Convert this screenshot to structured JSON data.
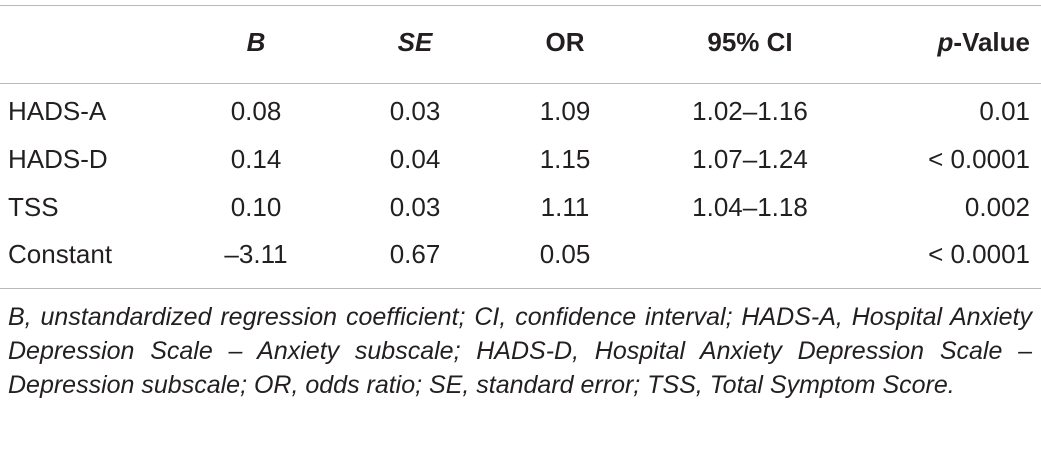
{
  "table": {
    "headers": {
      "label": "",
      "b": "B",
      "se": "SE",
      "or": "OR",
      "ci": "95% CI",
      "p_italic": "p",
      "p_rest": "-Value"
    },
    "rows": [
      {
        "label": "HADS-A",
        "b": "0.08",
        "se": "0.03",
        "or": "1.09",
        "ci": "1.02–1.16",
        "p": "0.01"
      },
      {
        "label": "HADS-D",
        "b": "0.14",
        "se": "0.04",
        "or": "1.15",
        "ci": "1.07–1.24",
        "p": "< 0.0001"
      },
      {
        "label": "TSS",
        "b": "0.10",
        "se": "0.03",
        "or": "1.11",
        "ci": "1.04–1.18",
        "p": "0.002"
      },
      {
        "label": "Constant",
        "b": "–3.11",
        "se": "0.67",
        "or": "0.05",
        "ci": "",
        "p": "< 0.0001"
      }
    ]
  },
  "footnote": "B, unstandardized regression coefficient; CI, confidence interval; HADS-A, Hospital Anxiety Depression Scale – Anxiety subscale; HADS-D, Hospital Anxiety Depression Scale – Depression subscale; OR, odds ratio; SE, standard error; TSS, Total Symptom Score."
}
